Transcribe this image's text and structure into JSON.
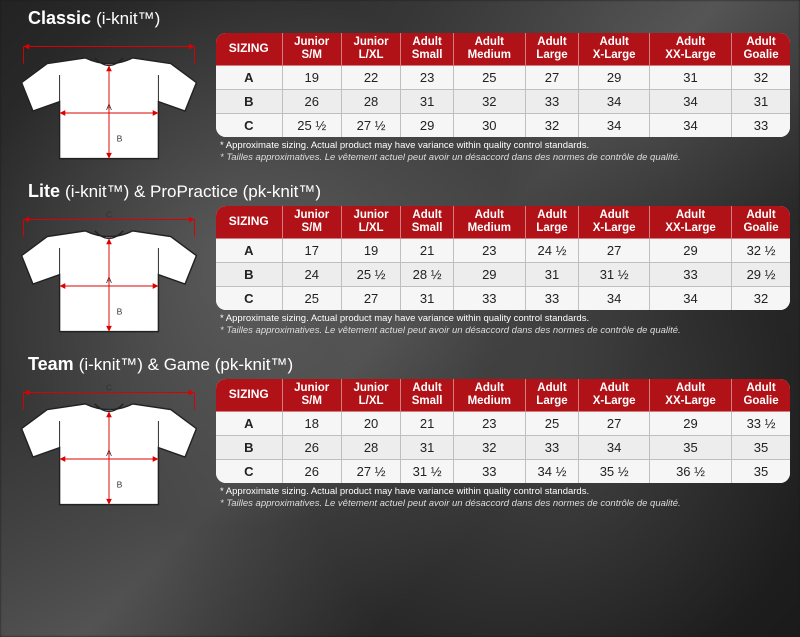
{
  "disclaimer_en": "* Approximate sizing. Actual product may have variance within quality control standards.",
  "disclaimer_fr": "* Tailles approximatives. Le vêtement actuel peut avoir un désaccord dans des normes de contrôle de qualité.",
  "table_header_bg": "#b01218",
  "table_header_fg": "#ffffff",
  "table_cell_bg": "#f6f6f6",
  "table_cell_alt_bg": "#ededed",
  "table_border": "#bfbfbf",
  "sections": [
    {
      "title_main": "Classic",
      "title_paren": "(i-knit™)",
      "columns": [
        "SIZING",
        "Junior S/M",
        "Junior L/XL",
        "Adult Small",
        "Adult Medium",
        "Adult Large",
        "Adult X-Large",
        "Adult XX-Large",
        "Adult Goalie"
      ],
      "rows": [
        [
          "A",
          "19",
          "22",
          "23",
          "25",
          "27",
          "29",
          "31",
          "32"
        ],
        [
          "B",
          "26",
          "28",
          "31",
          "32",
          "33",
          "34",
          "34",
          "31"
        ],
        [
          "C",
          "25 ½",
          "27 ½",
          "29",
          "30",
          "32",
          "34",
          "34",
          "33"
        ]
      ]
    },
    {
      "title_main": "Lite",
      "title_paren": "(i-knit™) & ProPractice (pk-knit™)",
      "columns": [
        "SIZING",
        "Junior S/M",
        "Junior L/XL",
        "Adult Small",
        "Adult Medium",
        "Adult Large",
        "Adult X-Large",
        "Adult XX-Large",
        "Adult Goalie"
      ],
      "rows": [
        [
          "A",
          "17",
          "19",
          "21",
          "23",
          "24 ½",
          "27",
          "29",
          "32 ½"
        ],
        [
          "B",
          "24",
          "25 ½",
          "28 ½",
          "29",
          "31",
          "31 ½",
          "33",
          "29 ½"
        ],
        [
          "C",
          "25",
          "27",
          "31",
          "33",
          "33",
          "34",
          "34",
          "32"
        ]
      ]
    },
    {
      "title_main": "Team",
      "title_paren": "(i-knit™) & Game (pk-knit™)",
      "columns": [
        "SIZING",
        "Junior S/M",
        "Junior L/XL",
        "Adult Small",
        "Adult Medium",
        "Adult Large",
        "Adult X-Large",
        "Adult XX-Large",
        "Adult Goalie"
      ],
      "rows": [
        [
          "A",
          "18",
          "20",
          "21",
          "23",
          "25",
          "27",
          "29",
          "33 ½"
        ],
        [
          "B",
          "26",
          "28",
          "31",
          "32",
          "33",
          "34",
          "35",
          "35"
        ],
        [
          "C",
          "26",
          "27 ½",
          "31 ½",
          "33",
          "34 ½",
          "35 ½",
          "36 ½",
          "35"
        ]
      ]
    }
  ]
}
